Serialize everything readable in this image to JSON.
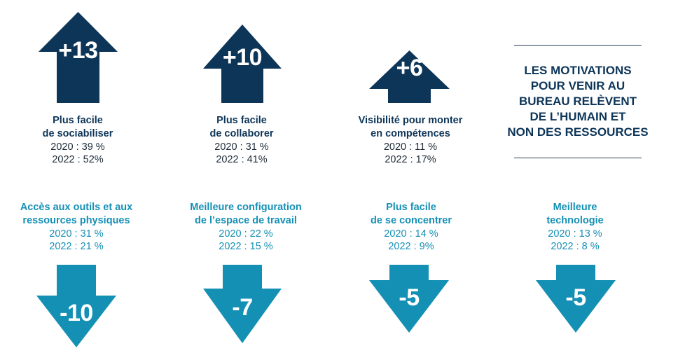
{
  "colors": {
    "dark": "#0d3558",
    "teal": "#1590b5"
  },
  "increases": [
    {
      "value": "+13",
      "label_line1": "Plus facile",
      "label_line2": "de sociabiliser",
      "stat_2020": "2020 : 39 %",
      "stat_2022": "2022 : 52%"
    },
    {
      "value": "+10",
      "label_line1": "Plus facile",
      "label_line2": "de collaborer",
      "stat_2020": "2020 : 31 %",
      "stat_2022": "2022 : 41%"
    },
    {
      "value": "+6",
      "label_line1": "Visibilité pour monter",
      "label_line2": "en compétences",
      "stat_2020": "2020 : 11 %",
      "stat_2022": "2022 : 17%"
    }
  ],
  "headline": {
    "lines": [
      "LES MOTIVATIONS",
      "POUR VENIR AU",
      "BUREAU RELÈVENT",
      "DE L’HUMAIN ET",
      "NON DES RESSOURCES"
    ]
  },
  "decreases": [
    {
      "value": "-10",
      "label_line1": "Accès aux outils et aux",
      "label_line2": "ressources physiques",
      "stat_2020": "2020 : 31 %",
      "stat_2022": "2022 : 21 %"
    },
    {
      "value": "-7",
      "label_line1": "Meilleure configuration",
      "label_line2": "de l’espace de travail",
      "stat_2020": "2020 : 22 %",
      "stat_2022": "2022 : 15 %"
    },
    {
      "value": "-5",
      "label_line1": "Plus facile",
      "label_line2": "de se concentrer",
      "stat_2020": "2020 : 14 %",
      "stat_2022": "2022 : 9%"
    },
    {
      "value": "-5",
      "label_line1": "Meilleure",
      "label_line2": "technologie",
      "stat_2020": "2020 : 13 %",
      "stat_2022": "2022 : 8 %"
    }
  ]
}
